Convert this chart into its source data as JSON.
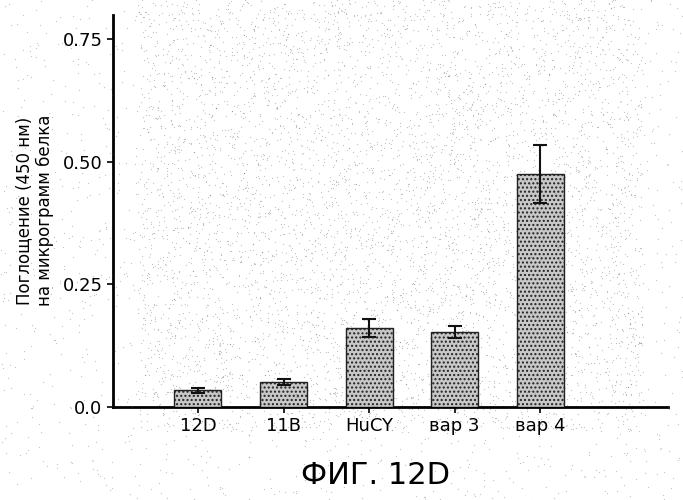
{
  "categories": [
    "12D",
    "11B",
    "HuCY",
    "вар 3",
    "вар 4"
  ],
  "values": [
    0.033,
    0.05,
    0.16,
    0.152,
    0.475
  ],
  "errors": [
    0.005,
    0.006,
    0.018,
    0.012,
    0.06
  ],
  "ylabel_line1": "Поглощение (450 нм)",
  "ylabel_line2": "на микрограмм белка",
  "title": "ФИГ. 12D",
  "ytick_labels": [
    "0.0",
    "0.25",
    "0.50",
    "0.75"
  ],
  "ytick_values": [
    0.0,
    0.25,
    0.5,
    0.75
  ],
  "ylim": [
    0.0,
    0.8
  ],
  "background_color": "#ffffff",
  "bar_facecolor": "#c8c8c8",
  "bar_hatch": "....",
  "bar_edgecolor": "#222222",
  "spine_color": "#000000",
  "title_fontsize": 22,
  "ylabel_fontsize": 12,
  "tick_fontsize": 13,
  "xtick_fontsize": 13,
  "bar_width": 0.55,
  "n_speckle_dots": 5000,
  "speckle_seed": 42,
  "speckle_size": 0.8,
  "speckle_color": "#555555",
  "speckle_alpha": 0.35
}
